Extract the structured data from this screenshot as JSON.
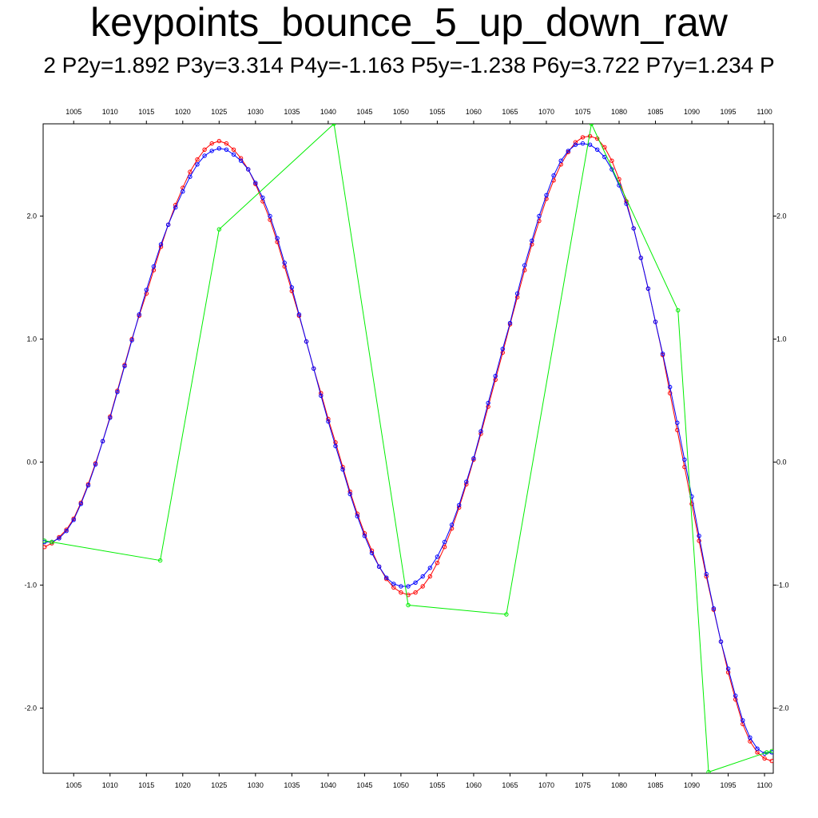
{
  "chart_data": {
    "type": "line",
    "title": "keypoints_bounce_5_up_down_raw",
    "subtitle": "2 P2y=1.892 P3y=3.314 P4y=-1.163 P5y=-1.238 P6y=3.722 P7y=1.234 P",
    "xlabel": "",
    "ylabel": "",
    "xlim": [
      1000.8,
      1101.2
    ],
    "ylim": [
      -2.53,
      2.75
    ],
    "x_ticks": [
      "1005",
      "1010",
      "1015",
      "1020",
      "1025",
      "1030",
      "1035",
      "1040",
      "1045",
      "1050",
      "1055",
      "1060",
      "1065",
      "1070",
      "1075",
      "1080",
      "1085",
      "1090",
      "1095",
      "1100"
    ],
    "y_ticks": [
      "2.0",
      "1.0",
      "0.0",
      "-1.0",
      "-2.0"
    ],
    "grid": false,
    "legend": "none",
    "series": [
      {
        "color": "#ff0000",
        "marker": "circle",
        "x": [
          1001,
          1002,
          1003,
          1004,
          1005,
          1006,
          1007,
          1008,
          1009,
          1010,
          1011,
          1012,
          1013,
          1014,
          1015,
          1016,
          1017,
          1018,
          1019,
          1020,
          1021,
          1022,
          1023,
          1024,
          1025,
          1026,
          1027,
          1028,
          1029,
          1030,
          1031,
          1032,
          1033,
          1034,
          1035,
          1036,
          1037,
          1038,
          1039,
          1040,
          1041,
          1042,
          1043,
          1044,
          1045,
          1046,
          1047,
          1048,
          1049,
          1050,
          1051,
          1052,
          1053,
          1054,
          1055,
          1056,
          1057,
          1058,
          1059,
          1060,
          1061,
          1062,
          1063,
          1064,
          1065,
          1066,
          1067,
          1068,
          1069,
          1070,
          1071,
          1072,
          1073,
          1074,
          1075,
          1076,
          1077,
          1078,
          1079,
          1080,
          1081,
          1082,
          1083,
          1084,
          1085,
          1086,
          1087,
          1088,
          1089,
          1090,
          1091,
          1092,
          1093,
          1094,
          1095,
          1096,
          1097,
          1098,
          1099,
          1100,
          1101
        ],
        "y": [
          -0.69,
          -0.66,
          -0.61,
          -0.55,
          -0.46,
          -0.33,
          -0.18,
          -0.01,
          0.17,
          0.37,
          0.58,
          0.79,
          1.0,
          1.19,
          1.37,
          1.56,
          1.75,
          1.93,
          2.09,
          2.23,
          2.36,
          2.46,
          2.54,
          2.59,
          2.61,
          2.59,
          2.54,
          2.47,
          2.38,
          2.26,
          2.12,
          1.97,
          1.79,
          1.59,
          1.39,
          1.19,
          0.98,
          0.76,
          0.56,
          0.35,
          0.16,
          -0.04,
          -0.24,
          -0.42,
          -0.58,
          -0.72,
          -0.85,
          -0.95,
          -1.02,
          -1.06,
          -1.08,
          -1.06,
          -1.01,
          -0.93,
          -0.82,
          -0.69,
          -0.54,
          -0.37,
          -0.18,
          0.02,
          0.23,
          0.45,
          0.67,
          0.89,
          1.12,
          1.34,
          1.56,
          1.77,
          1.96,
          2.14,
          2.29,
          2.42,
          2.52,
          2.6,
          2.64,
          2.65,
          2.63,
          2.56,
          2.45,
          2.3,
          2.12,
          1.9,
          1.66,
          1.41,
          1.14,
          0.87,
          0.56,
          0.26,
          -0.04,
          -0.34,
          -0.64,
          -0.93,
          -1.2,
          -1.46,
          -1.71,
          -1.93,
          -2.13,
          -2.27,
          -2.36,
          -2.41,
          -2.43
        ]
      },
      {
        "color": "#0000ff",
        "marker": "circle",
        "x": [
          1001,
          1002,
          1003,
          1004,
          1005,
          1006,
          1007,
          1008,
          1009,
          1010,
          1011,
          1012,
          1013,
          1014,
          1015,
          1016,
          1017,
          1018,
          1019,
          1020,
          1021,
          1022,
          1023,
          1024,
          1025,
          1026,
          1027,
          1028,
          1029,
          1030,
          1031,
          1032,
          1033,
          1034,
          1035,
          1036,
          1037,
          1038,
          1039,
          1040,
          1041,
          1042,
          1043,
          1044,
          1045,
          1046,
          1047,
          1048,
          1049,
          1050,
          1051,
          1052,
          1053,
          1054,
          1055,
          1056,
          1057,
          1058,
          1059,
          1060,
          1061,
          1062,
          1063,
          1064,
          1065,
          1066,
          1067,
          1068,
          1069,
          1070,
          1071,
          1072,
          1073,
          1074,
          1075,
          1076,
          1077,
          1078,
          1079,
          1080,
          1081,
          1082,
          1083,
          1084,
          1085,
          1086,
          1087,
          1088,
          1089,
          1090,
          1091,
          1092,
          1093,
          1094,
          1095,
          1096,
          1097,
          1098,
          1099,
          1100,
          1101
        ],
        "y": [
          -0.65,
          -0.65,
          -0.62,
          -0.56,
          -0.47,
          -0.34,
          -0.19,
          -0.02,
          0.17,
          0.36,
          0.57,
          0.78,
          0.99,
          1.2,
          1.4,
          1.59,
          1.77,
          1.93,
          2.07,
          2.2,
          2.32,
          2.42,
          2.49,
          2.53,
          2.55,
          2.54,
          2.5,
          2.45,
          2.38,
          2.27,
          2.15,
          2.0,
          1.82,
          1.62,
          1.42,
          1.2,
          0.98,
          0.76,
          0.54,
          0.33,
          0.13,
          -0.06,
          -0.26,
          -0.44,
          -0.6,
          -0.74,
          -0.85,
          -0.94,
          -0.99,
          -1.01,
          -1.01,
          -0.98,
          -0.93,
          -0.86,
          -0.77,
          -0.65,
          -0.51,
          -0.35,
          -0.16,
          0.03,
          0.25,
          0.48,
          0.7,
          0.92,
          1.13,
          1.37,
          1.6,
          1.8,
          2.0,
          2.17,
          2.33,
          2.45,
          2.53,
          2.58,
          2.59,
          2.58,
          2.54,
          2.48,
          2.38,
          2.25,
          2.1,
          1.9,
          1.66,
          1.41,
          1.14,
          0.88,
          0.61,
          0.32,
          0.02,
          -0.28,
          -0.6,
          -0.91,
          -1.19,
          -1.46,
          -1.68,
          -1.9,
          -2.1,
          -2.24,
          -2.33,
          -2.37,
          -2.36
        ]
      },
      {
        "color": "#00ee00",
        "marker": "circle",
        "x": [
          1001,
          1002,
          1016.9,
          1025,
          1040.8,
          1051,
          1064.5,
          1076.2,
          1088.1,
          1092.3,
          1100.3,
          1101
        ],
        "y": [
          -0.64,
          -0.65,
          -0.8,
          1.892,
          2.75,
          -1.163,
          -1.238,
          2.75,
          1.234,
          -2.52,
          -2.36,
          -2.35
        ]
      }
    ]
  }
}
